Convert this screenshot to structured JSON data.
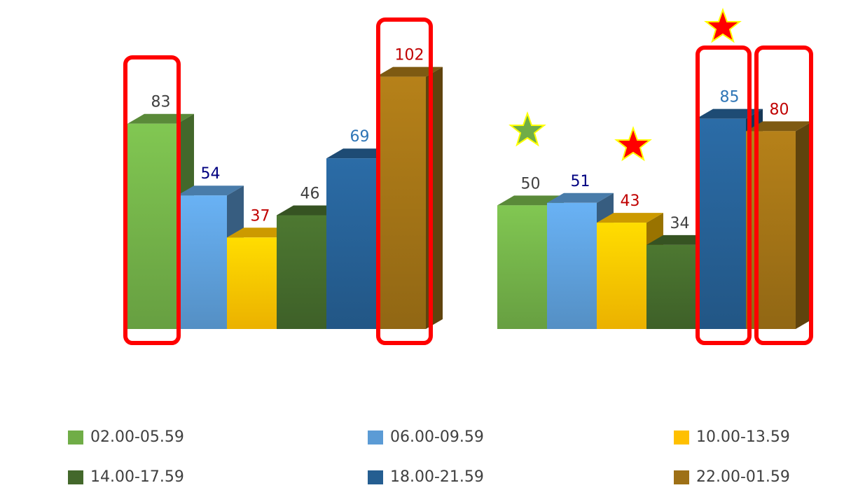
{
  "chart_data": {
    "type": "bar3d",
    "categories": [
      null,
      null
    ],
    "series": [
      {
        "name": "02.00-05.59",
        "color": "#70ad47",
        "label_color": "#404040",
        "values": [
          83,
          50
        ]
      },
      {
        "name": "06.00-09.59",
        "color": "#5b9bd5",
        "label_color": "#000080",
        "values": [
          54,
          51
        ]
      },
      {
        "name": "10.00-13.59",
        "color": "#ffc000",
        "label_color": "#c00000",
        "values": [
          37,
          43
        ]
      },
      {
        "name": "14.00-17.59",
        "color": "#43682b",
        "label_color": "#404040",
        "values": [
          46,
          34
        ]
      },
      {
        "name": "18.00-21.59",
        "color": "#255e91",
        "label_color": "#2e75b6",
        "values": [
          69,
          85
        ]
      },
      {
        "name": "22.00-01.59",
        "color": "#9e7016",
        "label_color": "#c00000",
        "values": [
          102,
          80
        ]
      }
    ],
    "ylim": [
      0,
      120
    ],
    "yticks": [
      0,
      20,
      40,
      60,
      80,
      100,
      120
    ],
    "grid": true,
    "legend": "bottom"
  }
}
